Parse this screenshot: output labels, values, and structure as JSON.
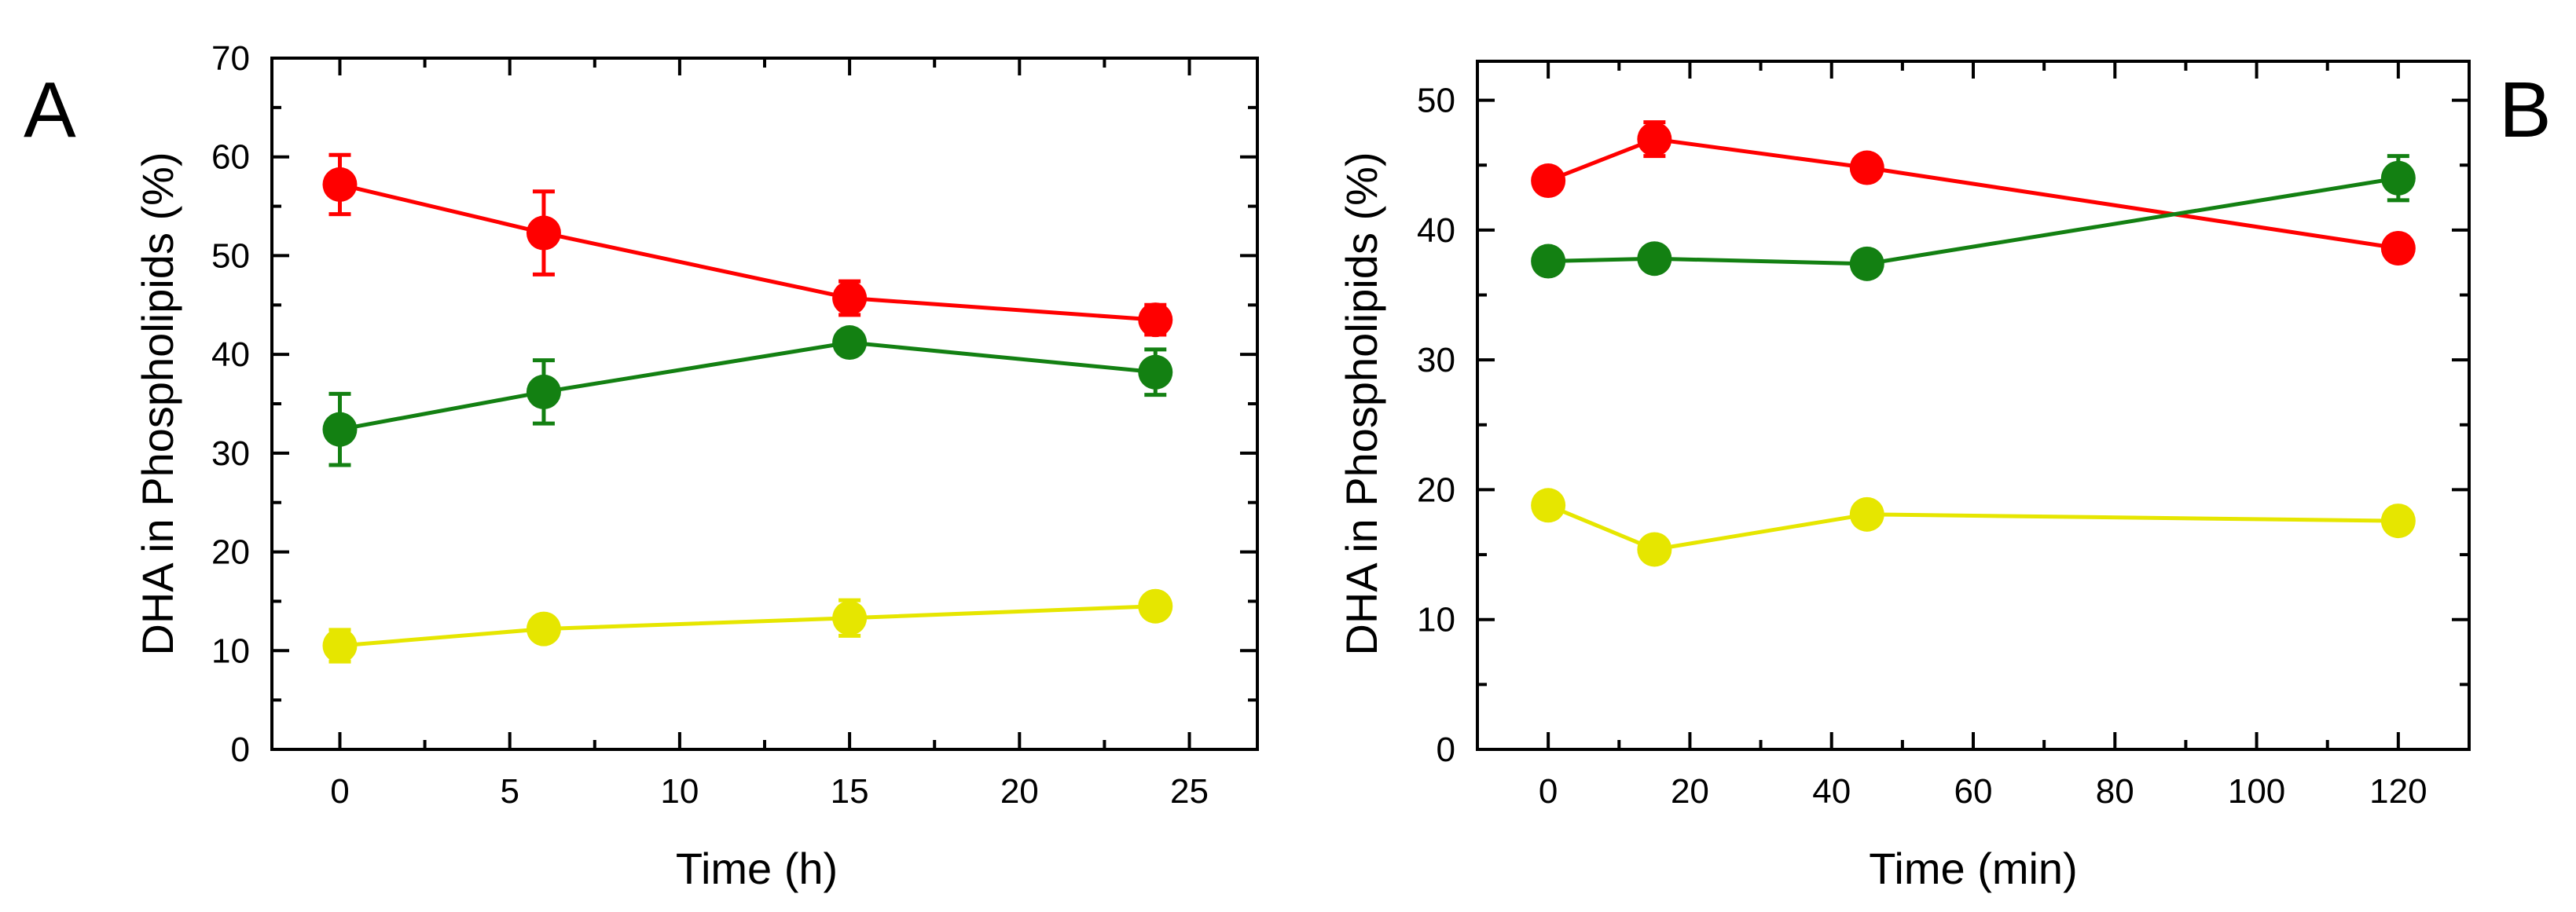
{
  "chart_data": [
    {
      "panel_label": "A",
      "type": "line",
      "xlabel": "Time (h)",
      "ylabel": "DHA in Phospholipids (%)",
      "xlim": [
        -2,
        27
      ],
      "ylim": [
        0,
        70
      ],
      "x_ticks": [
        0,
        5,
        10,
        15,
        20,
        25
      ],
      "y_ticks": [
        0,
        10,
        20,
        30,
        40,
        50,
        60,
        70
      ],
      "x": [
        0,
        6,
        15,
        24
      ],
      "series": [
        {
          "name": "red",
          "color": "#ff0000",
          "values": [
            57.2,
            52.3,
            45.7,
            43.5
          ],
          "errors": [
            3.0,
            4.2,
            1.7,
            1.5
          ]
        },
        {
          "name": "green",
          "color": "#138012",
          "values": [
            32.4,
            36.2,
            41.2,
            38.2
          ],
          "errors": [
            3.6,
            3.2,
            0.8,
            2.3
          ]
        },
        {
          "name": "yellow",
          "color": "#e6e600",
          "values": [
            10.5,
            12.2,
            13.3,
            14.5
          ],
          "errors": [
            1.6,
            1.0,
            1.8,
            0.8
          ]
        }
      ]
    },
    {
      "panel_label": "B",
      "type": "line",
      "xlabel": "Time (min)",
      "ylabel": "DHA in Phospholipids (%)",
      "xlim": [
        -10,
        130
      ],
      "ylim": [
        0,
        53
      ],
      "x_ticks": [
        0,
        20,
        40,
        60,
        80,
        100,
        120
      ],
      "y_ticks": [
        0,
        10,
        20,
        30,
        40,
        50
      ],
      "x": [
        0,
        15,
        45,
        120
      ],
      "series": [
        {
          "name": "red",
          "color": "#ff0000",
          "values": [
            43.8,
            47.0,
            44.8,
            38.6
          ],
          "errors": [
            0.5,
            1.3,
            0.5,
            0.8
          ]
        },
        {
          "name": "green",
          "color": "#138012",
          "values": [
            37.6,
            37.8,
            37.4,
            44.0
          ],
          "errors": [
            0.4,
            0.4,
            0.4,
            1.7
          ]
        },
        {
          "name": "yellow",
          "color": "#e6e600",
          "values": [
            18.8,
            15.4,
            18.1,
            17.6
          ],
          "errors": [
            0.4,
            0.4,
            0.4,
            0.4
          ]
        }
      ]
    }
  ]
}
